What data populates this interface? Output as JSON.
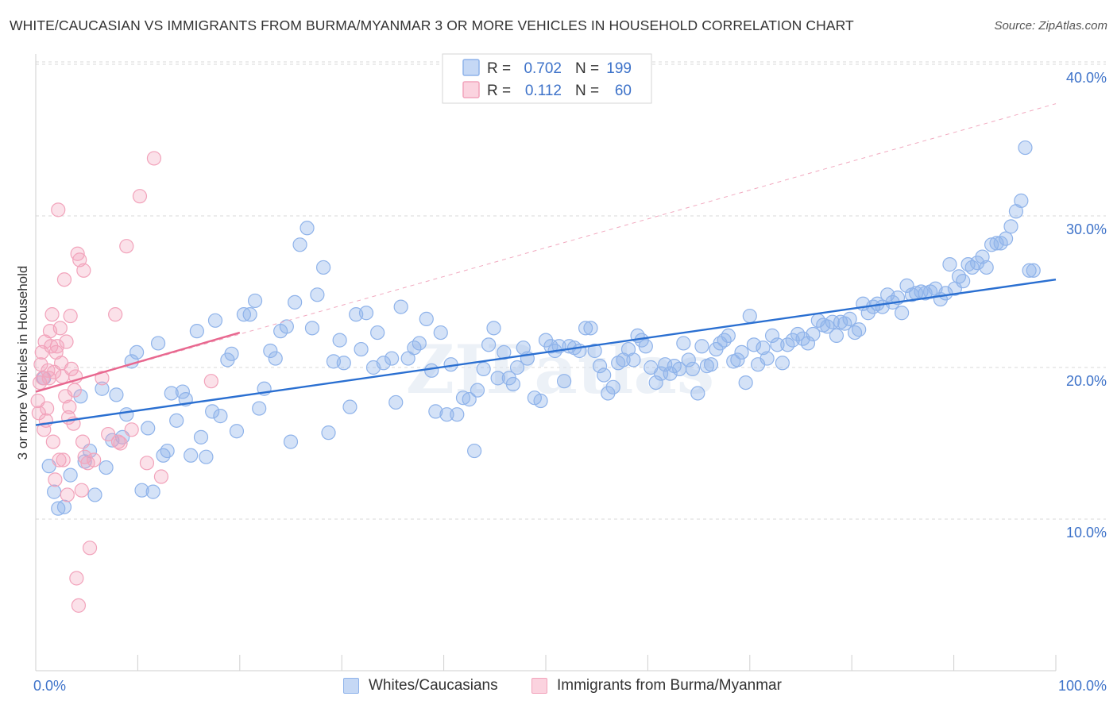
{
  "chart_data": {
    "type": "scatter",
    "title": "WHITE/CAUCASIAN VS IMMIGRANTS FROM BURMA/MYANMAR 3 OR MORE VEHICLES IN HOUSEHOLD CORRELATION CHART",
    "source": "Source: ZipAtlas.com",
    "ylabel": "3 or more Vehicles in Household",
    "xlabel": "",
    "xlim": [
      0,
      100
    ],
    "ylim": [
      0,
      42
    ],
    "x_tick_labels": [
      "0.0%",
      "100.0%"
    ],
    "y_ticks": [
      10,
      20,
      30,
      40
    ],
    "y_tick_labels": [
      "10.0%",
      "20.0%",
      "30.0%",
      "40.0%"
    ],
    "grid": "horizontal dashed",
    "watermark": "ZIPatlas",
    "legend_placement": "top-center",
    "colors": {
      "blue": "#8fb3ea",
      "blue_line": "#2a6fd1",
      "pink": "#f2a3bb",
      "pink_line": "#e8678f",
      "axis_text": "#3d72c9"
    },
    "stats": [
      {
        "r_label": "R =",
        "r_value": "0.702",
        "n_label": "N =",
        "n_value": "199"
      },
      {
        "r_label": "R =",
        "r_value": "0.112",
        "n_label": "N =",
        "n_value": "60"
      }
    ],
    "series": [
      {
        "name": "Whites/Caucasians",
        "color": "#8fb3ea",
        "trend": {
          "x": [
            0,
            100
          ],
          "y": [
            16.2,
            25.8
          ]
        },
        "points": [
          [
            0.8,
            19.3
          ],
          [
            1.3,
            13.5
          ],
          [
            1.8,
            11.8
          ],
          [
            2.2,
            10.7
          ],
          [
            2.8,
            10.8
          ],
          [
            3.4,
            12.9
          ],
          [
            4.4,
            18.1
          ],
          [
            4.8,
            13.8
          ],
          [
            5.3,
            14.5
          ],
          [
            5.8,
            11.6
          ],
          [
            6.5,
            18.6
          ],
          [
            6.9,
            13.4
          ],
          [
            7.5,
            15.2
          ],
          [
            7.9,
            18.2
          ],
          [
            8.5,
            15.4
          ],
          [
            8.9,
            16.9
          ],
          [
            9.4,
            20.4
          ],
          [
            9.9,
            21.0
          ],
          [
            10.4,
            11.9
          ],
          [
            11.0,
            16.0
          ],
          [
            11.5,
            11.8
          ],
          [
            12.0,
            21.6
          ],
          [
            12.5,
            14.2
          ],
          [
            12.9,
            14.5
          ],
          [
            13.3,
            18.3
          ],
          [
            13.8,
            16.5
          ],
          [
            14.4,
            18.4
          ],
          [
            14.7,
            17.9
          ],
          [
            15.2,
            14.2
          ],
          [
            15.8,
            22.4
          ],
          [
            16.2,
            15.4
          ],
          [
            16.7,
            14.1
          ],
          [
            17.3,
            17.1
          ],
          [
            17.6,
            23.1
          ],
          [
            18.1,
            16.8
          ],
          [
            18.8,
            20.5
          ],
          [
            19.2,
            20.9
          ],
          [
            19.7,
            15.8
          ],
          [
            20.4,
            23.5
          ],
          [
            21.0,
            23.5
          ],
          [
            21.5,
            24.4
          ],
          [
            21.9,
            17.3
          ],
          [
            22.4,
            18.6
          ],
          [
            23.0,
            21.1
          ],
          [
            23.5,
            20.6
          ],
          [
            24.0,
            22.4
          ],
          [
            24.6,
            22.7
          ],
          [
            25.0,
            15.1
          ],
          [
            25.4,
            24.3
          ],
          [
            25.9,
            28.1
          ],
          [
            26.6,
            29.2
          ],
          [
            27.1,
            22.6
          ],
          [
            27.6,
            24.8
          ],
          [
            28.2,
            26.6
          ],
          [
            28.7,
            15.7
          ],
          [
            29.2,
            20.4
          ],
          [
            29.8,
            21.8
          ],
          [
            30.2,
            20.3
          ],
          [
            30.8,
            17.4
          ],
          [
            31.4,
            23.5
          ],
          [
            31.9,
            21.2
          ],
          [
            32.4,
            23.6
          ],
          [
            33.1,
            20.0
          ],
          [
            33.5,
            22.3
          ],
          [
            34.1,
            20.3
          ],
          [
            34.9,
            20.6
          ],
          [
            35.3,
            17.7
          ],
          [
            35.8,
            24.0
          ],
          [
            36.5,
            20.6
          ],
          [
            37.1,
            21.3
          ],
          [
            37.6,
            21.6
          ],
          [
            38.3,
            23.2
          ],
          [
            38.8,
            19.8
          ],
          [
            39.2,
            17.1
          ],
          [
            39.7,
            22.3
          ],
          [
            40.3,
            16.9
          ],
          [
            40.7,
            20.2
          ],
          [
            41.3,
            16.9
          ],
          [
            41.9,
            18.0
          ],
          [
            42.5,
            17.9
          ],
          [
            43.0,
            14.5
          ],
          [
            43.3,
            18.5
          ],
          [
            43.9,
            19.9
          ],
          [
            44.4,
            21.5
          ],
          [
            44.9,
            22.6
          ],
          [
            45.3,
            19.3
          ],
          [
            45.9,
            21.0
          ],
          [
            46.4,
            19.3
          ],
          [
            46.8,
            18.9
          ],
          [
            47.2,
            20.0
          ],
          [
            47.8,
            21.3
          ],
          [
            48.2,
            20.6
          ],
          [
            48.9,
            18.0
          ],
          [
            49.5,
            17.8
          ],
          [
            50.0,
            21.8
          ],
          [
            50.5,
            21.4
          ],
          [
            50.9,
            21.1
          ],
          [
            51.3,
            21.4
          ],
          [
            51.8,
            19.1
          ],
          [
            52.3,
            21.4
          ],
          [
            52.8,
            21.3
          ],
          [
            53.3,
            21.1
          ],
          [
            53.9,
            22.6
          ],
          [
            54.4,
            22.6
          ],
          [
            54.8,
            21.1
          ],
          [
            55.3,
            20.1
          ],
          [
            55.7,
            19.5
          ],
          [
            56.1,
            18.3
          ],
          [
            56.6,
            18.7
          ],
          [
            57.1,
            20.3
          ],
          [
            57.6,
            20.5
          ],
          [
            58.1,
            21.2
          ],
          [
            58.6,
            20.5
          ],
          [
            59.0,
            22.1
          ],
          [
            59.4,
            21.8
          ],
          [
            59.8,
            21.4
          ],
          [
            60.3,
            20.0
          ],
          [
            60.8,
            19.0
          ],
          [
            61.3,
            19.6
          ],
          [
            61.7,
            20.2
          ],
          [
            62.2,
            19.6
          ],
          [
            62.6,
            20.1
          ],
          [
            63.1,
            19.9
          ],
          [
            63.5,
            21.6
          ],
          [
            64.0,
            20.5
          ],
          [
            64.4,
            19.9
          ],
          [
            64.9,
            18.3
          ],
          [
            65.3,
            21.4
          ],
          [
            65.8,
            20.1
          ],
          [
            66.2,
            20.2
          ],
          [
            66.7,
            21.2
          ],
          [
            67.1,
            21.6
          ],
          [
            67.5,
            21.8
          ],
          [
            67.9,
            22.1
          ],
          [
            68.4,
            20.4
          ],
          [
            68.8,
            20.5
          ],
          [
            69.2,
            21.0
          ],
          [
            69.6,
            19.0
          ],
          [
            70.0,
            23.4
          ],
          [
            70.4,
            21.5
          ],
          [
            70.8,
            20.2
          ],
          [
            71.3,
            21.3
          ],
          [
            71.7,
            20.6
          ],
          [
            72.2,
            22.1
          ],
          [
            72.7,
            21.5
          ],
          [
            73.2,
            20.3
          ],
          [
            73.7,
            21.5
          ],
          [
            74.2,
            21.8
          ],
          [
            74.7,
            22.2
          ],
          [
            75.2,
            21.9
          ],
          [
            75.7,
            21.6
          ],
          [
            76.2,
            22.2
          ],
          [
            76.7,
            23.1
          ],
          [
            77.2,
            22.8
          ],
          [
            77.6,
            22.7
          ],
          [
            78.1,
            23.0
          ],
          [
            78.5,
            22.1
          ],
          [
            78.9,
            23.0
          ],
          [
            79.3,
            22.9
          ],
          [
            79.8,
            23.2
          ],
          [
            80.3,
            22.3
          ],
          [
            80.7,
            22.5
          ],
          [
            81.1,
            24.2
          ],
          [
            81.6,
            23.6
          ],
          [
            82.1,
            24.0
          ],
          [
            82.5,
            24.2
          ],
          [
            83.0,
            24.0
          ],
          [
            83.5,
            24.8
          ],
          [
            84.0,
            24.3
          ],
          [
            84.5,
            24.6
          ],
          [
            84.9,
            23.6
          ],
          [
            85.4,
            25.4
          ],
          [
            85.9,
            24.8
          ],
          [
            86.3,
            24.9
          ],
          [
            86.8,
            25.0
          ],
          [
            87.2,
            24.9
          ],
          [
            87.7,
            25.0
          ],
          [
            88.2,
            25.2
          ],
          [
            88.7,
            24.5
          ],
          [
            89.2,
            24.9
          ],
          [
            89.6,
            26.8
          ],
          [
            90.1,
            25.2
          ],
          [
            90.5,
            26.0
          ],
          [
            90.9,
            25.7
          ],
          [
            91.4,
            26.8
          ],
          [
            91.8,
            26.6
          ],
          [
            92.3,
            26.9
          ],
          [
            92.8,
            27.3
          ],
          [
            93.2,
            26.6
          ],
          [
            93.7,
            28.1
          ],
          [
            94.2,
            28.2
          ],
          [
            94.6,
            28.2
          ],
          [
            95.1,
            28.5
          ],
          [
            95.6,
            29.3
          ],
          [
            96.1,
            30.3
          ],
          [
            96.6,
            31.0
          ],
          [
            97.0,
            34.5
          ],
          [
            97.4,
            26.4
          ],
          [
            97.8,
            26.4
          ]
        ]
      },
      {
        "name": "Immigrants from Burma/Myanmar",
        "color": "#f2a3bb",
        "trend": {
          "x": [
            0,
            20
          ],
          "y": [
            18.4,
            22.3
          ]
        },
        "trend_extended": {
          "x": [
            0,
            100
          ],
          "y": [
            18.4,
            37.4
          ]
        },
        "points": [
          [
            0.2,
            17.8
          ],
          [
            0.3,
            17.0
          ],
          [
            0.4,
            19.0
          ],
          [
            0.5,
            20.2
          ],
          [
            0.6,
            21.0
          ],
          [
            0.7,
            19.3
          ],
          [
            0.8,
            15.9
          ],
          [
            0.9,
            21.7
          ],
          [
            1.0,
            16.5
          ],
          [
            1.1,
            17.3
          ],
          [
            1.2,
            19.8
          ],
          [
            1.3,
            19.3
          ],
          [
            1.4,
            22.4
          ],
          [
            1.5,
            21.4
          ],
          [
            1.6,
            23.5
          ],
          [
            1.7,
            15.1
          ],
          [
            1.8,
            19.7
          ],
          [
            1.9,
            12.6
          ],
          [
            2.0,
            21.0
          ],
          [
            2.1,
            21.4
          ],
          [
            2.2,
            30.4
          ],
          [
            2.3,
            13.9
          ],
          [
            2.4,
            22.6
          ],
          [
            2.5,
            20.3
          ],
          [
            2.7,
            13.9
          ],
          [
            2.8,
            25.8
          ],
          [
            2.9,
            18.1
          ],
          [
            3.0,
            21.7
          ],
          [
            3.1,
            11.6
          ],
          [
            3.2,
            16.7
          ],
          [
            3.3,
            17.4
          ],
          [
            3.4,
            23.4
          ],
          [
            3.5,
            19.9
          ],
          [
            3.7,
            16.3
          ],
          [
            3.8,
            18.5
          ],
          [
            3.9,
            19.4
          ],
          [
            4.0,
            6.1
          ],
          [
            4.1,
            27.5
          ],
          [
            4.2,
            4.3
          ],
          [
            4.3,
            27.1
          ],
          [
            4.5,
            11.9
          ],
          [
            4.6,
            15.1
          ],
          [
            4.7,
            26.4
          ],
          [
            4.8,
            14.1
          ],
          [
            5.1,
            13.7
          ],
          [
            5.3,
            8.1
          ],
          [
            5.7,
            13.9
          ],
          [
            6.5,
            19.3
          ],
          [
            7.1,
            15.6
          ],
          [
            7.8,
            23.5
          ],
          [
            8.1,
            15.1
          ],
          [
            8.3,
            15.0
          ],
          [
            8.9,
            28.0
          ],
          [
            9.4,
            15.9
          ],
          [
            10.2,
            31.3
          ],
          [
            10.9,
            13.7
          ],
          [
            11.6,
            33.8
          ],
          [
            12.3,
            12.8
          ],
          [
            17.2,
            19.1
          ],
          [
            2.6,
            19.4
          ]
        ]
      }
    ]
  },
  "legend_bottom": [
    {
      "label": "Whites/Caucasians",
      "color": "#8fb3ea"
    },
    {
      "label": "Immigrants from Burma/Myanmar",
      "color": "#f2a3bb"
    }
  ]
}
